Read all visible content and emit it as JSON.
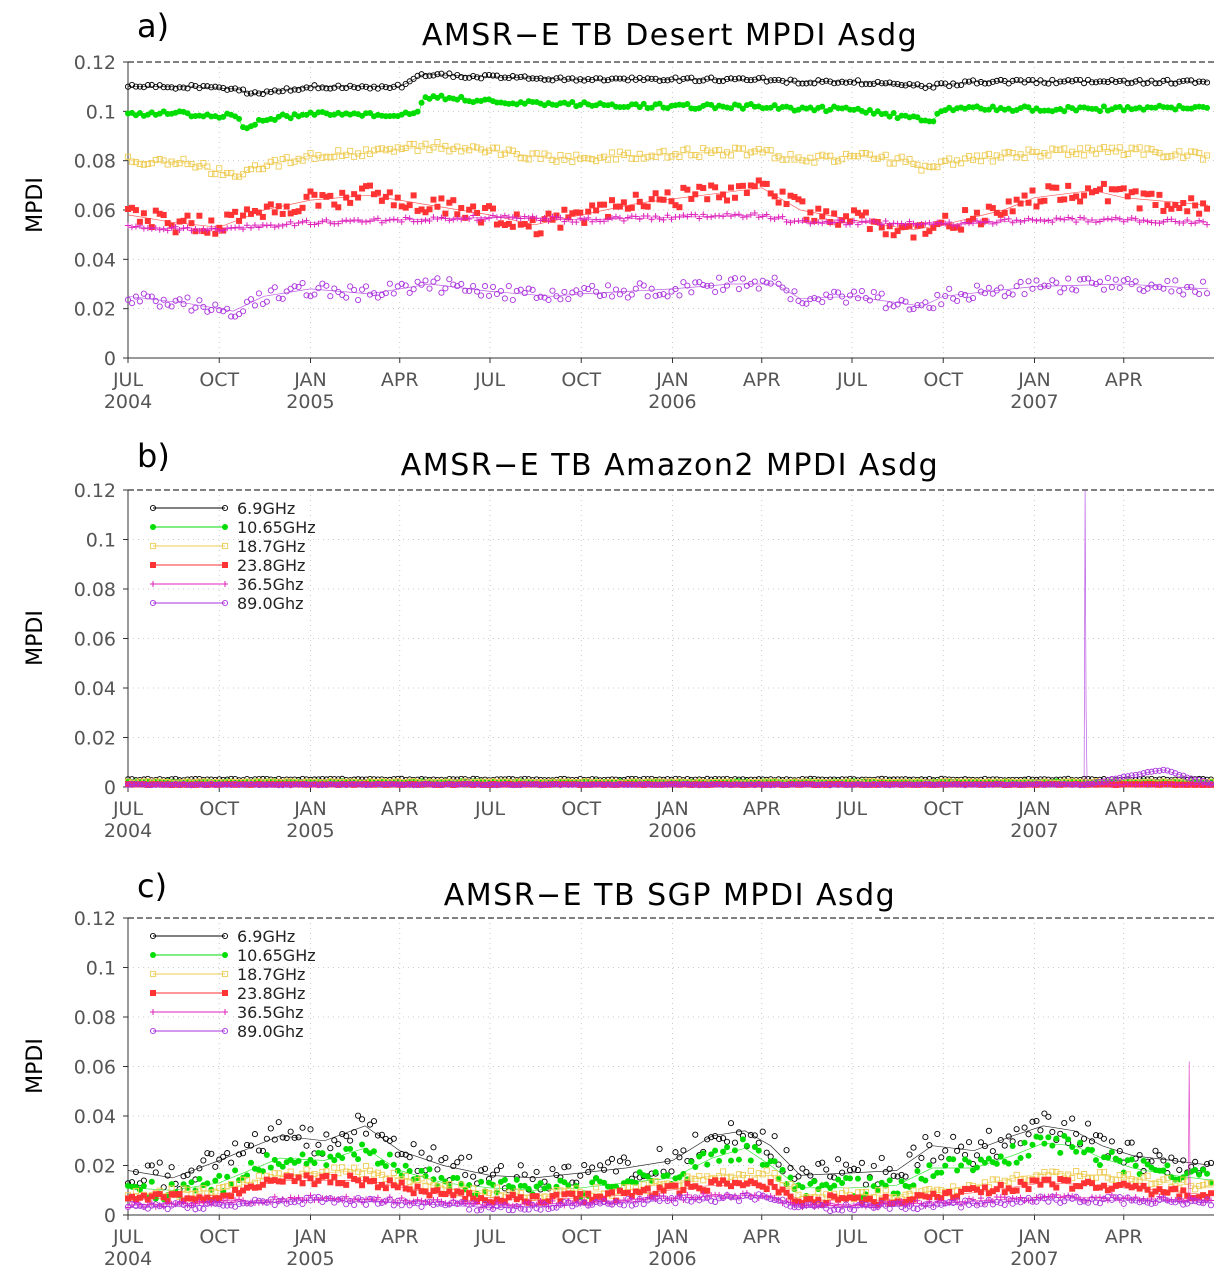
{
  "chart_data": [
    {
      "panel_label": "a)",
      "title": "AMSR−E TB Desert MPDI Asdg",
      "type": "scatter",
      "ylabel": "MPDI",
      "ylim": [
        0,
        0.12
      ],
      "yticks": [
        "0",
        "0.02",
        "0.04",
        "0.06",
        "0.08",
        "0.1",
        "0.12"
      ],
      "xlim": [
        "2004-07-01",
        "2007-07-01"
      ],
      "xticks": [
        {
          "date": "2004-07-01",
          "label": "JUL",
          "year": "2004"
        },
        {
          "date": "2004-10-01",
          "label": "OCT",
          "year": ""
        },
        {
          "date": "2005-01-01",
          "label": "JAN",
          "year": "2005"
        },
        {
          "date": "2005-04-01",
          "label": "APR",
          "year": ""
        },
        {
          "date": "2005-07-01",
          "label": "JUL",
          "year": ""
        },
        {
          "date": "2005-10-01",
          "label": "OCT",
          "year": ""
        },
        {
          "date": "2006-01-01",
          "label": "JAN",
          "year": "2006"
        },
        {
          "date": "2006-04-01",
          "label": "APR",
          "year": ""
        },
        {
          "date": "2006-07-01",
          "label": "JUL",
          "year": ""
        },
        {
          "date": "2006-10-01",
          "label": "OCT",
          "year": ""
        },
        {
          "date": "2007-01-01",
          "label": "JAN",
          "year": "2007"
        },
        {
          "date": "2007-04-01",
          "label": "APR",
          "year": ""
        }
      ],
      "grid": true,
      "legend": null,
      "series": [
        {
          "name": "6.9GHz",
          "x": [
            "2004-07-01",
            "2004-09-01",
            "2004-10-20",
            "2004-11-01",
            "2005-01-01",
            "2005-04-01",
            "2005-04-25",
            "2005-07-01",
            "2005-09-20",
            "2005-10-01",
            "2006-01-01",
            "2006-04-01",
            "2006-05-05",
            "2006-05-10",
            "2006-07-01",
            "2006-09-15",
            "2006-11-01",
            "2007-01-01",
            "2007-04-01",
            "2007-06-25"
          ],
          "y": [
            0.11,
            0.11,
            0.109,
            0.107,
            0.11,
            0.11,
            0.115,
            0.114,
            0.113,
            0.113,
            0.113,
            0.113,
            0.112,
            0.112,
            0.112,
            0.11,
            0.112,
            0.112,
            0.112,
            0.112
          ]
        },
        {
          "name": "10.65GHz",
          "x": [
            "2004-07-01",
            "2004-09-01",
            "2004-10-20",
            "2004-10-25",
            "2004-11-15",
            "2005-01-01",
            "2005-04-20",
            "2005-04-25",
            "2005-07-01",
            "2005-09-20",
            "2005-10-01",
            "2006-01-01",
            "2006-04-01",
            "2006-05-05",
            "2006-05-10",
            "2006-07-01",
            "2006-09-20",
            "2006-10-01",
            "2007-01-01",
            "2007-04-01",
            "2007-06-25"
          ],
          "y": [
            0.099,
            0.099,
            0.098,
            0.093,
            0.097,
            0.099,
            0.099,
            0.106,
            0.104,
            0.103,
            0.103,
            0.102,
            0.102,
            0.101,
            0.101,
            0.101,
            0.096,
            0.101,
            0.101,
            0.101,
            0.102
          ]
        },
        {
          "name": "18.7GHz",
          "x": [
            "2004-07-01",
            "2004-09-01",
            "2004-10-20",
            "2004-11-01",
            "2005-01-01",
            "2005-03-01",
            "2005-05-01",
            "2005-07-01",
            "2005-09-01",
            "2005-10-01",
            "2006-01-01",
            "2006-04-01",
            "2006-05-10",
            "2006-07-01",
            "2006-08-20",
            "2006-09-20",
            "2006-10-01",
            "2007-01-01",
            "2007-04-01",
            "2007-06-25"
          ],
          "y": [
            0.08,
            0.079,
            0.073,
            0.077,
            0.082,
            0.083,
            0.086,
            0.084,
            0.081,
            0.081,
            0.083,
            0.084,
            0.08,
            0.082,
            0.08,
            0.076,
            0.079,
            0.083,
            0.084,
            0.082
          ]
        },
        {
          "name": "23.8GHz",
          "x": [
            "2004-07-01",
            "2004-08-15",
            "2004-10-01",
            "2004-11-15",
            "2005-01-01",
            "2005-03-01",
            "2005-05-01",
            "2005-07-01",
            "2005-08-15",
            "2005-10-01",
            "2005-12-01",
            "2006-02-01",
            "2006-04-01",
            "2006-05-10",
            "2006-07-01",
            "2006-09-01",
            "2006-10-01",
            "2006-12-01",
            "2007-01-01",
            "2007-03-01",
            "2007-04-01",
            "2007-06-25"
          ],
          "y": [
            0.058,
            0.055,
            0.053,
            0.06,
            0.064,
            0.066,
            0.062,
            0.058,
            0.054,
            0.058,
            0.063,
            0.066,
            0.069,
            0.06,
            0.056,
            0.052,
            0.054,
            0.06,
            0.065,
            0.068,
            0.065,
            0.062
          ]
        },
        {
          "name": "36.5Ghz",
          "x": [
            "2004-07-01",
            "2004-10-01",
            "2005-01-01",
            "2005-04-01",
            "2005-07-01",
            "2005-10-01",
            "2006-01-01",
            "2006-04-01",
            "2006-05-10",
            "2006-07-01",
            "2006-10-01",
            "2007-01-01",
            "2007-04-01",
            "2007-06-25"
          ],
          "y": [
            0.053,
            0.052,
            0.055,
            0.056,
            0.057,
            0.056,
            0.057,
            0.058,
            0.055,
            0.055,
            0.054,
            0.056,
            0.056,
            0.055
          ]
        },
        {
          "name": "89.0Ghz",
          "x": [
            "2004-07-01",
            "2004-09-01",
            "2004-10-15",
            "2004-11-15",
            "2005-01-01",
            "2005-03-01",
            "2005-05-01",
            "2005-07-01",
            "2005-09-01",
            "2005-10-01",
            "2006-01-01",
            "2006-03-01",
            "2006-04-15",
            "2006-05-10",
            "2006-07-01",
            "2006-09-10",
            "2006-10-01",
            "2007-01-01",
            "2007-04-01",
            "2007-06-25"
          ],
          "y": [
            0.025,
            0.022,
            0.019,
            0.025,
            0.028,
            0.026,
            0.03,
            0.027,
            0.025,
            0.026,
            0.028,
            0.03,
            0.03,
            0.024,
            0.025,
            0.021,
            0.025,
            0.029,
            0.03,
            0.028
          ]
        }
      ]
    },
    {
      "panel_label": "b)",
      "title": "AMSR−E TB Amazon2 MPDI Asdg",
      "type": "scatter",
      "ylabel": "MPDI",
      "ylim": [
        0,
        0.12
      ],
      "yticks": [
        "0",
        "0.02",
        "0.04",
        "0.06",
        "0.08",
        "0.1",
        "0.12"
      ],
      "xlim": [
        "2004-07-01",
        "2007-07-01"
      ],
      "xticks": [
        {
          "date": "2004-07-01",
          "label": "JUL",
          "year": "2004"
        },
        {
          "date": "2004-10-01",
          "label": "OCT",
          "year": ""
        },
        {
          "date": "2005-01-01",
          "label": "JAN",
          "year": "2005"
        },
        {
          "date": "2005-04-01",
          "label": "APR",
          "year": ""
        },
        {
          "date": "2005-07-01",
          "label": "JUL",
          "year": ""
        },
        {
          "date": "2005-10-01",
          "label": "OCT",
          "year": ""
        },
        {
          "date": "2006-01-01",
          "label": "JAN",
          "year": "2006"
        },
        {
          "date": "2006-04-01",
          "label": "APR",
          "year": ""
        },
        {
          "date": "2006-07-01",
          "label": "JUL",
          "year": ""
        },
        {
          "date": "2006-10-01",
          "label": "OCT",
          "year": ""
        },
        {
          "date": "2007-01-01",
          "label": "JAN",
          "year": "2007"
        },
        {
          "date": "2007-04-01",
          "label": "APR",
          "year": ""
        }
      ],
      "grid": true,
      "legend": "top-left",
      "series": [
        {
          "name": "6.9GHz",
          "x": [
            "2004-07-01",
            "2007-06-30"
          ],
          "y": [
            0.003,
            0.003
          ]
        },
        {
          "name": "10.65GHz",
          "x": [
            "2004-07-01",
            "2007-06-30"
          ],
          "y": [
            0.002,
            0.002
          ]
        },
        {
          "name": "18.7GHz",
          "x": [
            "2004-07-01",
            "2007-06-30"
          ],
          "y": [
            0.002,
            0.002
          ]
        },
        {
          "name": "23.8GHz",
          "x": [
            "2004-07-01",
            "2007-06-30"
          ],
          "y": [
            0.001,
            0.001
          ]
        },
        {
          "name": "36.5Ghz",
          "x": [
            "2004-07-01",
            "2007-06-30"
          ],
          "y": [
            0.001,
            0.001
          ]
        },
        {
          "name": "89.0Ghz",
          "x": [
            "2004-07-01",
            "2007-02-20",
            "2007-02-21",
            "2007-02-22",
            "2007-02-23",
            "2007-05-10",
            "2007-06-30"
          ],
          "y": [
            0.001,
            0.001,
            0.12,
            0.03,
            0.001,
            0.007,
            0.001
          ]
        }
      ]
    },
    {
      "panel_label": "c)",
      "title": "AMSR−E TB SGP MPDI Asdg",
      "type": "scatter",
      "ylabel": "MPDI",
      "ylim": [
        0,
        0.12
      ],
      "yticks": [
        "0",
        "0.02",
        "0.04",
        "0.06",
        "0.08",
        "0.1",
        "0.12"
      ],
      "xlim": [
        "2004-07-01",
        "2007-07-01"
      ],
      "xticks": [
        {
          "date": "2004-07-01",
          "label": "JUL",
          "year": "2004"
        },
        {
          "date": "2004-10-01",
          "label": "OCT",
          "year": ""
        },
        {
          "date": "2005-01-01",
          "label": "JAN",
          "year": "2005"
        },
        {
          "date": "2005-04-01",
          "label": "APR",
          "year": ""
        },
        {
          "date": "2005-07-01",
          "label": "JUL",
          "year": ""
        },
        {
          "date": "2005-10-01",
          "label": "OCT",
          "year": ""
        },
        {
          "date": "2006-01-01",
          "label": "JAN",
          "year": "2006"
        },
        {
          "date": "2006-04-01",
          "label": "APR",
          "year": ""
        },
        {
          "date": "2006-07-01",
          "label": "JUL",
          "year": ""
        },
        {
          "date": "2006-10-01",
          "label": "OCT",
          "year": ""
        },
        {
          "date": "2007-01-01",
          "label": "JAN",
          "year": "2007"
        },
        {
          "date": "2007-04-01",
          "label": "APR",
          "year": ""
        }
      ],
      "grid": true,
      "legend": "top-left",
      "series": [
        {
          "name": "6.9GHz",
          "x": [
            "2004-07-01",
            "2004-08-15",
            "2004-10-01",
            "2004-12-01",
            "2005-01-15",
            "2005-02-25",
            "2005-04-01",
            "2005-05-15",
            "2005-07-01",
            "2005-08-15",
            "2005-10-01",
            "2005-11-15",
            "2006-01-01",
            "2006-02-10",
            "2006-03-15",
            "2006-04-10",
            "2006-05-10",
            "2006-07-01",
            "2006-08-15",
            "2006-09-20",
            "2006-11-01",
            "2006-12-10",
            "2007-01-10",
            "2007-02-10",
            "2007-03-10",
            "2007-04-10",
            "2007-05-20",
            "2007-06-30"
          ],
          "y": [
            0.018,
            0.015,
            0.022,
            0.032,
            0.03,
            0.036,
            0.026,
            0.02,
            0.016,
            0.015,
            0.017,
            0.019,
            0.022,
            0.032,
            0.034,
            0.028,
            0.016,
            0.017,
            0.018,
            0.028,
            0.026,
            0.032,
            0.036,
            0.034,
            0.028,
            0.024,
            0.022,
            0.02
          ]
        },
        {
          "name": "10.65GHz",
          "x": [
            "2004-07-01",
            "2004-08-15",
            "2004-10-01",
            "2004-12-01",
            "2005-01-15",
            "2005-02-25",
            "2005-04-01",
            "2005-05-15",
            "2005-07-01",
            "2005-08-15",
            "2005-10-01",
            "2005-11-15",
            "2006-01-01",
            "2006-02-10",
            "2006-03-15",
            "2006-04-10",
            "2006-05-10",
            "2006-07-01",
            "2006-08-15",
            "2006-09-20",
            "2006-11-01",
            "2006-12-10",
            "2007-01-10",
            "2007-02-10",
            "2007-03-10",
            "2007-04-10",
            "2007-05-20",
            "2007-06-30"
          ],
          "y": [
            0.011,
            0.01,
            0.013,
            0.023,
            0.022,
            0.027,
            0.018,
            0.013,
            0.011,
            0.01,
            0.011,
            0.013,
            0.015,
            0.023,
            0.027,
            0.02,
            0.011,
            0.011,
            0.012,
            0.019,
            0.019,
            0.024,
            0.029,
            0.028,
            0.023,
            0.019,
            0.016,
            0.014
          ]
        },
        {
          "name": "18.7GHz",
          "x": [
            "2004-07-01",
            "2004-10-01",
            "2004-12-01",
            "2005-02-25",
            "2005-05-15",
            "2005-08-15",
            "2005-11-15",
            "2006-02-10",
            "2006-04-10",
            "2006-05-10",
            "2006-08-15",
            "2006-11-01",
            "2007-01-10",
            "2007-03-10",
            "2007-06-30"
          ],
          "y": [
            0.008,
            0.01,
            0.016,
            0.018,
            0.011,
            0.008,
            0.01,
            0.016,
            0.016,
            0.008,
            0.008,
            0.012,
            0.017,
            0.016,
            0.011
          ]
        },
        {
          "name": "23.8GHz",
          "x": [
            "2004-07-01",
            "2004-10-01",
            "2004-12-01",
            "2005-02-25",
            "2005-05-15",
            "2005-08-15",
            "2005-11-15",
            "2006-02-10",
            "2006-04-10",
            "2006-05-10",
            "2006-08-15",
            "2006-11-01",
            "2007-01-10",
            "2007-03-10",
            "2007-06-30"
          ],
          "y": [
            0.006,
            0.008,
            0.014,
            0.014,
            0.008,
            0.006,
            0.008,
            0.012,
            0.012,
            0.006,
            0.006,
            0.009,
            0.013,
            0.012,
            0.008
          ]
        },
        {
          "name": "36.5Ghz",
          "x": [
            "2004-07-01",
            "2004-10-01",
            "2005-01-01",
            "2005-04-01",
            "2005-07-01",
            "2005-10-01",
            "2006-01-01",
            "2006-04-01",
            "2006-05-10",
            "2006-07-01",
            "2006-10-01",
            "2007-01-01",
            "2007-04-01",
            "2007-06-05",
            "2007-06-06",
            "2007-06-07",
            "2007-06-30"
          ],
          "y": [
            0.004,
            0.005,
            0.007,
            0.006,
            0.004,
            0.005,
            0.007,
            0.008,
            0.004,
            0.004,
            0.005,
            0.007,
            0.007,
            0.006,
            0.062,
            0.006,
            0.006
          ]
        },
        {
          "name": "89.0Ghz",
          "x": [
            "2004-07-01",
            "2004-10-01",
            "2005-01-01",
            "2005-04-01",
            "2005-07-01",
            "2005-10-01",
            "2006-01-01",
            "2006-04-01",
            "2006-05-10",
            "2006-07-01",
            "2006-10-01",
            "2007-01-01",
            "2007-04-01",
            "2007-06-30"
          ],
          "y": [
            0.003,
            0.004,
            0.006,
            0.005,
            0.003,
            0.004,
            0.006,
            0.007,
            0.003,
            0.003,
            0.004,
            0.006,
            0.006,
            0.005
          ]
        }
      ]
    }
  ],
  "colors": {
    "6.9GHz": "#000000",
    "10.65GHz": "#00dd00",
    "18.7GHz": "#eecc55",
    "23.8GHz": "#ff3333",
    "36.5Ghz": "#dd22bb",
    "89.0Ghz": "#aa33dd"
  },
  "markers": {
    "6.9GHz": "open-circle",
    "10.65GHz": "filled-circle",
    "18.7GHz": "open-square",
    "23.8GHz": "filled-square",
    "36.5Ghz": "plus",
    "89.0Ghz": "open-circle"
  }
}
